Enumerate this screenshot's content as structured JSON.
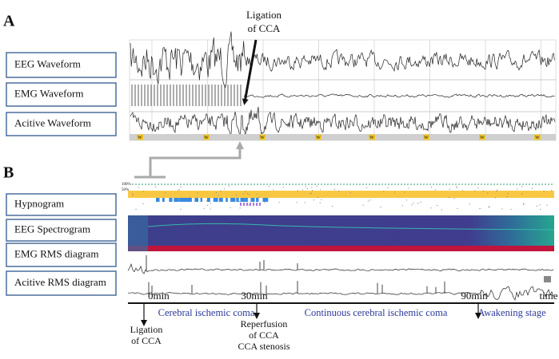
{
  "panel_a": {
    "label": "A",
    "annotation": [
      "Ligation",
      "of CCA"
    ],
    "rows": [
      "EEG Waveform",
      "EMG Waveform",
      "Acitive Waveform"
    ],
    "marker": "W"
  },
  "panel_b": {
    "label": "B",
    "rows": [
      "Hypnogram",
      "EEG Spectrogram",
      "EMG RMS diagram",
      "Acitive RMS diagram"
    ],
    "scale_labels": [
      "100%",
      "50%"
    ],
    "timeline": {
      "ticks": [
        "0min",
        "30min",
        "90min",
        "time"
      ],
      "phases": [
        "Cerebral ischemic coma",
        "Continuous cerebral ischemic coma",
        "Awakening stage"
      ],
      "events": [
        [
          "Ligation",
          "of CCA"
        ],
        [
          "Reperfusion",
          "of CCA",
          "CCA stenosis"
        ]
      ]
    }
  }
}
